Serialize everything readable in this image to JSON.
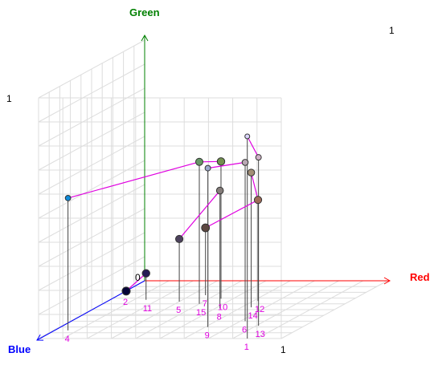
{
  "chart_data": {
    "type": "scatter",
    "title": "",
    "axes": {
      "x": {
        "label": "Red",
        "color": "#ff0000",
        "range": [
          0,
          1
        ],
        "ticks": [
          "0",
          "1"
        ]
      },
      "y": {
        "label": "Green",
        "color": "#008000",
        "range": [
          0,
          1
        ],
        "ticks": [
          "1"
        ]
      },
      "z": {
        "label": "Blue",
        "color": "#0000ff",
        "range": [
          0,
          1
        ],
        "ticks": [
          "1"
        ]
      }
    },
    "grid": true,
    "drop_lines": true,
    "label_color": "#e000e0",
    "connector_color": "#e000e0",
    "points": [
      {
        "label": "1",
        "x": 0.86,
        "y": 0.84,
        "z": 1.0
      },
      {
        "label": "2",
        "x": 0.02,
        "y": 0.01,
        "z": 0.22
      },
      {
        "label": "4",
        "x": 0.06,
        "y": 0.55,
        "z": 0.86
      },
      {
        "label": "5",
        "x": 0.3,
        "y": 0.26,
        "z": 0.36
      },
      {
        "label": "6",
        "x": 0.72,
        "y": 0.66,
        "z": 0.7
      },
      {
        "label": "7",
        "x": 0.36,
        "y": 0.28,
        "z": 0.25
      },
      {
        "label": "8",
        "x": 0.52,
        "y": 0.49,
        "z": 0.48
      },
      {
        "label": "9",
        "x": 0.61,
        "y": 0.66,
        "z": 0.8
      },
      {
        "label": "10",
        "x": 0.45,
        "y": 0.57,
        "z": 0.31
      },
      {
        "label": "11",
        "x": 0.15,
        "y": 0.11,
        "z": 0.33
      },
      {
        "label": "12",
        "x": 0.62,
        "y": 0.42,
        "z": 0.35
      },
      {
        "label": "13",
        "x": 0.81,
        "y": 0.7,
        "z": 0.78
      },
      {
        "label": "14",
        "x": 0.64,
        "y": 0.56,
        "z": 0.46
      },
      {
        "label": "15",
        "x": 0.4,
        "y": 0.59,
        "z": 0.4
      }
    ],
    "connections": [
      [
        "1",
        "13"
      ],
      [
        "4",
        "15"
      ],
      [
        "5",
        "8"
      ],
      [
        "7",
        "12"
      ],
      [
        "9",
        "6"
      ],
      [
        "10",
        "15"
      ],
      [
        "14",
        "12"
      ],
      [
        "2",
        "11"
      ]
    ]
  }
}
